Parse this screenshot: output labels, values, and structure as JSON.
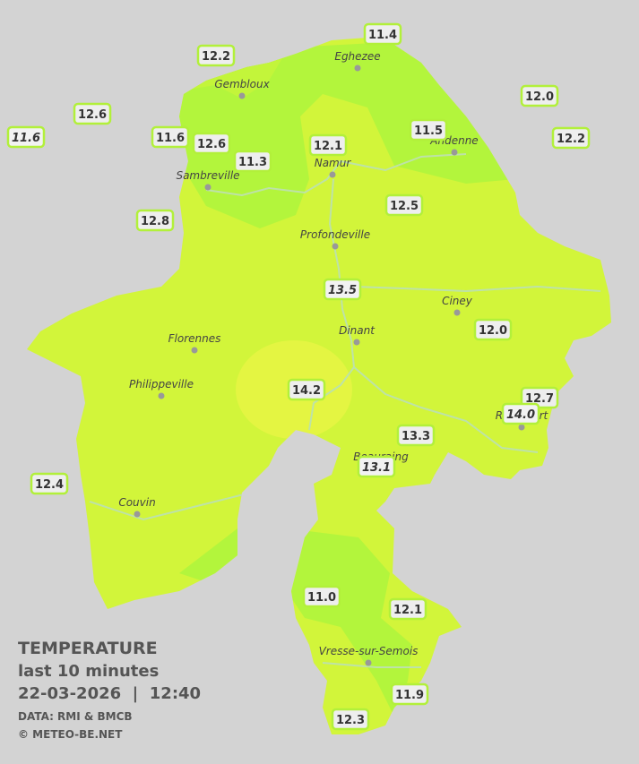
{
  "stations": [
    {
      "value": "12.2",
      "italic": false
    },
    {
      "value": "11.4",
      "italic": false
    },
    {
      "value": "12.6",
      "italic": false
    },
    {
      "value": "11.6",
      "italic": true
    },
    {
      "value": "11.6",
      "italic": false
    },
    {
      "value": "12.6",
      "italic": false
    },
    {
      "value": "11.3",
      "italic": false
    },
    {
      "value": "12.1",
      "italic": false
    },
    {
      "value": "11.5",
      "italic": false
    },
    {
      "value": "12.0",
      "italic": false
    },
    {
      "value": "12.2",
      "italic": false
    },
    {
      "value": "12.8",
      "italic": false
    },
    {
      "value": "12.5",
      "italic": false
    },
    {
      "value": "13.5",
      "italic": true
    },
    {
      "value": "12.0",
      "italic": false
    },
    {
      "value": "14.2",
      "italic": false
    },
    {
      "value": "12.7",
      "italic": false
    },
    {
      "value": "14.0",
      "italic": true
    },
    {
      "value": "13.3",
      "italic": false
    },
    {
      "value": "13.1",
      "italic": true
    },
    {
      "value": "12.4",
      "italic": false
    },
    {
      "value": "11.0",
      "italic": false
    },
    {
      "value": "12.1",
      "italic": false
    },
    {
      "value": "11.9",
      "italic": false
    },
    {
      "value": "12.3",
      "italic": false
    }
  ],
  "towns": [
    "Gembloux",
    "Eghezee",
    "Andenne",
    "Sambreville",
    "Namur",
    "Profondeville",
    "Ciney",
    "Dinant",
    "Florennes",
    "Philippeville",
    "Rochefort",
    "Beauraing",
    "Couvin",
    "Vresse-sur-Semois"
  ],
  "legend": {
    "title": "TEMPERATURE",
    "period": "last 10 minutes",
    "datetime": "22-03-2026  |  12:40",
    "source": "DATA: RMI & BMCB",
    "credit": "© METEO-BE.NET"
  }
}
